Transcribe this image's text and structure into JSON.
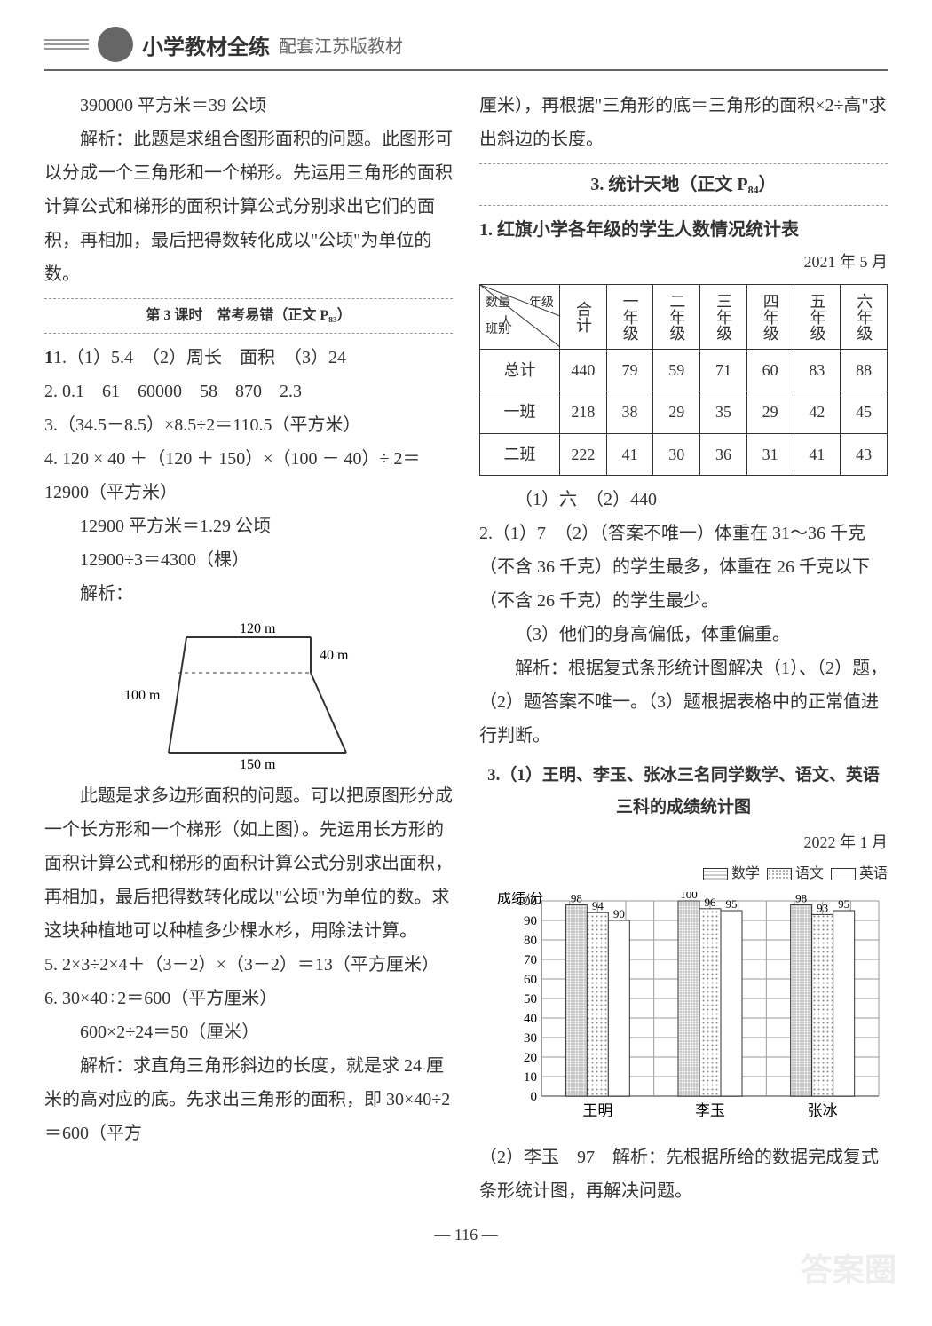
{
  "header": {
    "title": "小学教材全练",
    "subtitle": "配套江苏版教材"
  },
  "left": {
    "line1": "390000 平方米＝39 公顷",
    "line2": "解析：此题是求组合图形面积的问题。此图形可以分成一个三角形和一个梯形。先运用三角形的面积计算公式和梯形的面积计算公式分别求出它们的面积，再相加，最后把得数转化成以\"公顷\"为单位的数。",
    "section3": "第 3 课时　常考易错（正文 P₈₃）",
    "q1": "1.（1）5.4　（2）周长　面积　（3）24",
    "q2": "2. 0.1　61　60000　58　870　2.3",
    "q3": "3.（34.5－8.5）×8.5÷2＝110.5（平方米）",
    "q4a": "4. 120 × 40 ＋（120 ＋ 150）×（100 － 40）÷ 2＝12900（平方米）",
    "q4b": "12900 平方米＝1.29 公顷",
    "q4c": "12900÷3＝4300（棵）",
    "q4d": "解析：",
    "diagram": {
      "top": "120 m",
      "right": "40 m",
      "left": "100 m",
      "bottom": "150 m"
    },
    "q4e": "此题是求多边形面积的问题。可以把原图形分成一个长方形和一个梯形（如上图）。先运用长方形的面积计算公式和梯形的面积计算公式分别求出面积，再相加，最后把得数转化成以\"公顷\"为单位的数。求这块种植地可以种植多少棵水杉，用除法计算。",
    "q5": "5. 2×3÷2×4＋（3－2）×（3－2）＝13（平方厘米）",
    "q6a": "6. 30×40÷2＝600（平方厘米）",
    "q6b": "600×2÷24＝50（厘米）",
    "q6c": "解析：求直角三角形斜边的长度，就是求 24 厘米的高对应的底。先求出三角形的面积，即 30×40÷2＝600（平方"
  },
  "right": {
    "cont": "厘米），再根据\"三角形的底＝三角形的面积×2÷高\"求出斜边的长度。",
    "section": "3. 统计天地（正文 P₈₄）",
    "q1title": "1. 红旗小学各年级的学生人数情况统计表",
    "tableDate": "2021 年 5 月",
    "table": {
      "corner1": "数量",
      "corner2": "年级",
      "corner3": "人",
      "corner4": "班别",
      "cols": [
        "合计",
        "一年级",
        "二年级",
        "三年级",
        "四年级",
        "五年级",
        "六年级"
      ],
      "rows": [
        {
          "label": "总计",
          "vals": [
            "440",
            "79",
            "59",
            "71",
            "60",
            "83",
            "88"
          ]
        },
        {
          "label": "一班",
          "vals": [
            "218",
            "38",
            "29",
            "35",
            "29",
            "42",
            "45"
          ]
        },
        {
          "label": "二班",
          "vals": [
            "222",
            "41",
            "30",
            "36",
            "31",
            "41",
            "43"
          ]
        }
      ]
    },
    "q1ans": "（1）六　（2）440",
    "q2a": "2.（1）7　（2）（答案不唯一）体重在 31～36 千克（不含 36 千克）的学生最多，体重在 26 千克以下（不含 26 千克）的学生最少。",
    "q2b": "（3）他们的身高偏低，体重偏重。",
    "q2c": "解析：根据复式条形统计图解决（1）、（2）题，（2）题答案不唯一。（3）题根据表格中的正常值进行判断。",
    "q3title": "3.（1）王明、李玉、张冰三名同学数学、语文、英语三科的成绩统计图",
    "chartDate": "2022 年 1 月",
    "chart": {
      "ylabel": "成绩/分",
      "ymax": 100,
      "ytick": 10,
      "legend": [
        "数学",
        "语文",
        "英语"
      ],
      "legendPatterns": [
        "grid",
        "dots",
        "blank"
      ],
      "categories": [
        "王明",
        "李玉",
        "张冰"
      ],
      "series": [
        {
          "vals": [
            98,
            94,
            90
          ],
          "labels": [
            "98",
            "94",
            "90"
          ]
        },
        {
          "vals": [
            100,
            96,
            95
          ],
          "labels": [
            "100",
            "96",
            "95"
          ]
        },
        {
          "vals": [
            98,
            93,
            95
          ],
          "labels": [
            "98",
            "93",
            "95"
          ]
        }
      ],
      "barColors": {
        "grid": "#cccccc",
        "dots": "#e8e8e8",
        "blank": "#ffffff"
      },
      "gridColor": "#999999"
    },
    "q3ans": "（2）李玉　97　解析：先根据所给的数据完成复式条形统计图，再解决问题。"
  },
  "pageNum": "116",
  "watermark": "答案圈"
}
